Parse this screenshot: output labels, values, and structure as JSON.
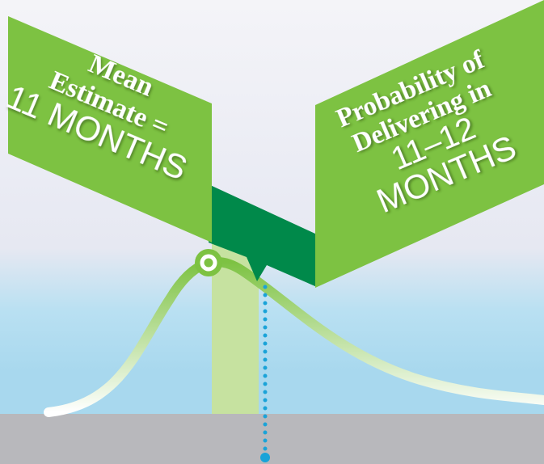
{
  "left_sign": {
    "lines": [
      "Mean",
      "Estimate =",
      "11 MONTHS"
    ]
  },
  "right_sign": {
    "lines": [
      "Probability of",
      "Delivering in",
      "11–12",
      "MONTHS"
    ]
  }
}
